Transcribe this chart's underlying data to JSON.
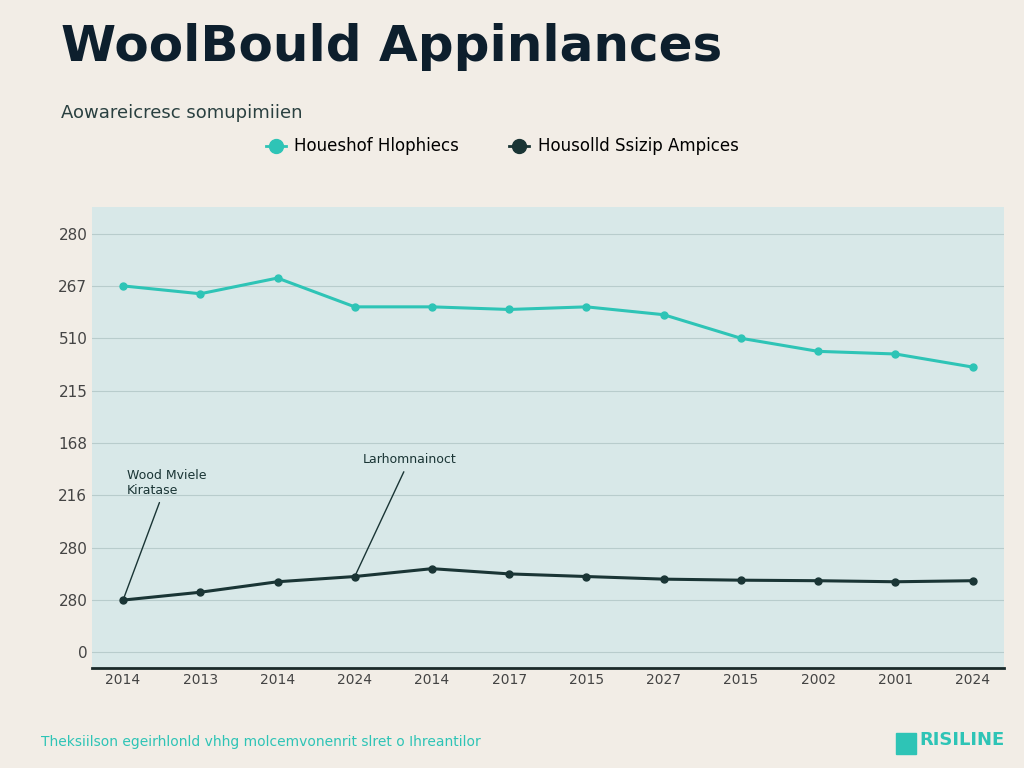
{
  "title": "WoolBould Appinlances",
  "subtitle": "Aowareicresc somupimiien",
  "legend_label1": "Houeshof Hlophiecs",
  "legend_label2": "Housolld Ssizip Ampices",
  "annotation1_label": "Wood Mviele\nKiratase",
  "annotation2_label": "Larhomnainoct",
  "footer_text": "Theksiilson egeirhlonld vhhg molcemvonenrit slret o Ihreantilor",
  "brand": "RISILINE",
  "x_labels": [
    "2014",
    "2013",
    "2014",
    "2024",
    "2014",
    "2017",
    "2015",
    "2027",
    "2015",
    "2002",
    "2001",
    "2024"
  ],
  "line1_values": [
    7,
    6.85,
    7.15,
    6.6,
    6.6,
    6.55,
    6.6,
    6.45,
    6.0,
    5.75,
    5.7,
    5.45
  ],
  "line2_values": [
    1.0,
    1.15,
    1.35,
    1.45,
    1.6,
    1.5,
    1.45,
    1.4,
    1.38,
    1.37,
    1.35,
    1.37
  ],
  "ytick_positions": [
    0,
    1,
    2,
    3,
    4,
    5,
    6,
    7,
    8
  ],
  "ytick_labels": [
    "0",
    "280",
    "280",
    "216",
    "168",
    "215",
    "510",
    "267",
    "280"
  ],
  "color_line1": "#2ec4b6",
  "color_line2": "#1a3535",
  "bg_color": "#d8e8e8",
  "fig_bg": "#f2ede6",
  "title_color": "#0d1f2d",
  "subtitle_color": "#2a4040",
  "footer_color": "#2ec4b6",
  "brand_color": "#2ec4b6",
  "annotation_color": "#1a3535",
  "grid_color": "#b8cccc",
  "marker_size": 5,
  "line_width": 2.2
}
